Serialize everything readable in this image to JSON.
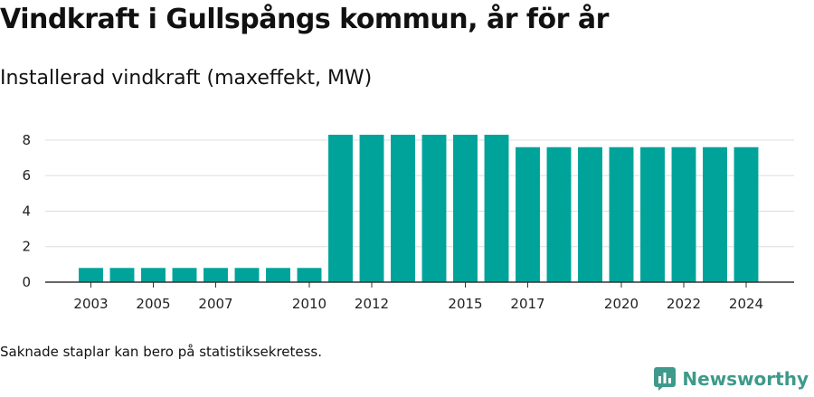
{
  "header": {
    "title": "Vindkraft i Gullspångs kommun, år för år",
    "subtitle": "Installerad vindkraft (maxeffekt, MW)"
  },
  "footer": {
    "note": "Saknade staplar kan bero på statistiksekretess.",
    "brand": "Newsworthy"
  },
  "colors": {
    "bar": "#00a39a",
    "grid": "#dddddd",
    "axis": "#333333",
    "brand": "#3e9a8a"
  },
  "icons": {
    "logo": "newsworthy-logo-icon"
  },
  "chart_data": {
    "type": "bar",
    "title": "Vindkraft i Gullspångs kommun, år för år",
    "subtitle": "Installerad vindkraft (maxeffekt, MW)",
    "xlabel": "",
    "ylabel": "",
    "categories": [
      "2003",
      "2004",
      "2005",
      "2006",
      "2007",
      "2008",
      "2009",
      "2010",
      "2011",
      "2012",
      "2013",
      "2014",
      "2015",
      "2016",
      "2017",
      "2018",
      "2019",
      "2020",
      "2021",
      "2022",
      "2023",
      "2024"
    ],
    "values": [
      0.8,
      0.8,
      0.8,
      0.8,
      0.8,
      0.8,
      0.8,
      0.8,
      8.3,
      8.3,
      8.3,
      8.3,
      8.3,
      8.3,
      7.6,
      7.6,
      7.6,
      7.6,
      7.6,
      7.6,
      7.6,
      7.6
    ],
    "x_tick_labels": [
      "2003",
      "2005",
      "2007",
      "2010",
      "2012",
      "2015",
      "2017",
      "2020",
      "2022",
      "2024"
    ],
    "y_ticks": [
      0,
      2,
      4,
      6,
      8
    ],
    "ylim": [
      0,
      8.3
    ],
    "grid": true,
    "legend": "none"
  }
}
